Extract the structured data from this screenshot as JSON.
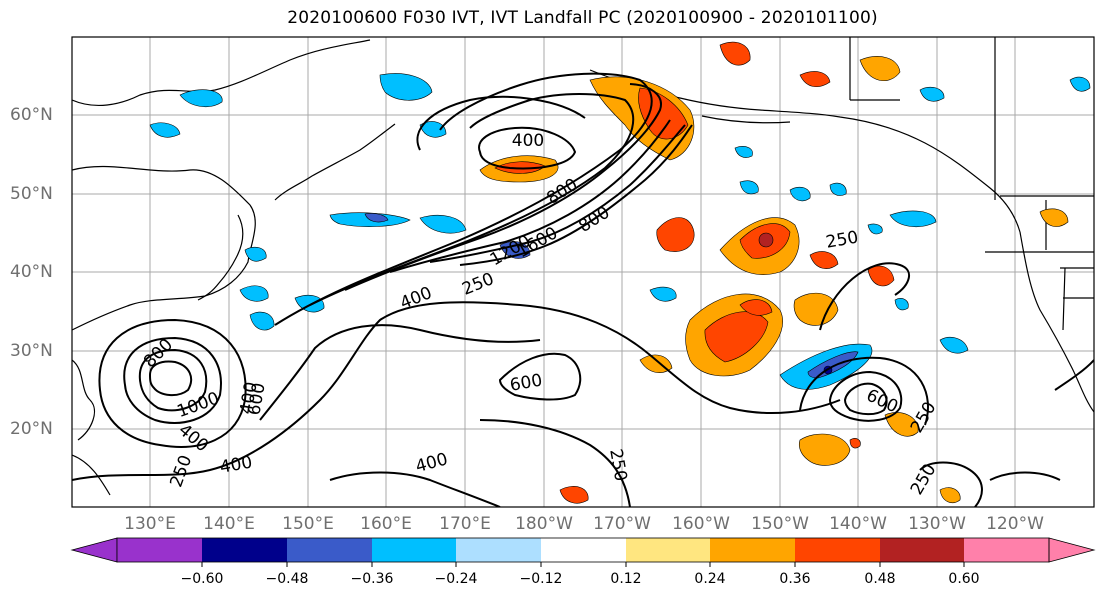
{
  "title": "2020100600 F030 IVT, IVT Landfall PC (2020100900 - 2020101100)",
  "lat_labels": [
    "60°N",
    "50°N",
    "40°N",
    "30°N",
    "20°N"
  ],
  "lon_labels": [
    "130°E",
    "140°E",
    "150°E",
    "160°E",
    "170°E",
    "180°W",
    "170°W",
    "160°W",
    "150°W",
    "140°W",
    "130°W",
    "120°W"
  ],
  "contour_labels": [
    "400",
    "800",
    "1200",
    "1600",
    "800",
    "400",
    "250",
    "400",
    "800",
    "1000",
    "600",
    "400",
    "250",
    "400",
    "600",
    "400",
    "250",
    "250",
    "600",
    "250",
    "250"
  ],
  "colorbar": {
    "colors": [
      "#9932CC",
      "#00008B",
      "#3A5BC9",
      "#00BFFF",
      "#ADDFFF",
      "#FFFFFF",
      "#FFE680",
      "#FFA500",
      "#FF4500",
      "#B22222",
      "#FF80AA"
    ],
    "tick_labels": [
      "−0.60",
      "−0.48",
      "−0.36",
      "−0.24",
      "−0.12",
      "0.12",
      "0.24",
      "0.36",
      "0.48",
      "0.60"
    ]
  },
  "map_colors": {
    "ocean": "#ffffff",
    "coastline": "#000000",
    "gridline": "#a9a9a9",
    "ivt_contour": "#000000"
  }
}
